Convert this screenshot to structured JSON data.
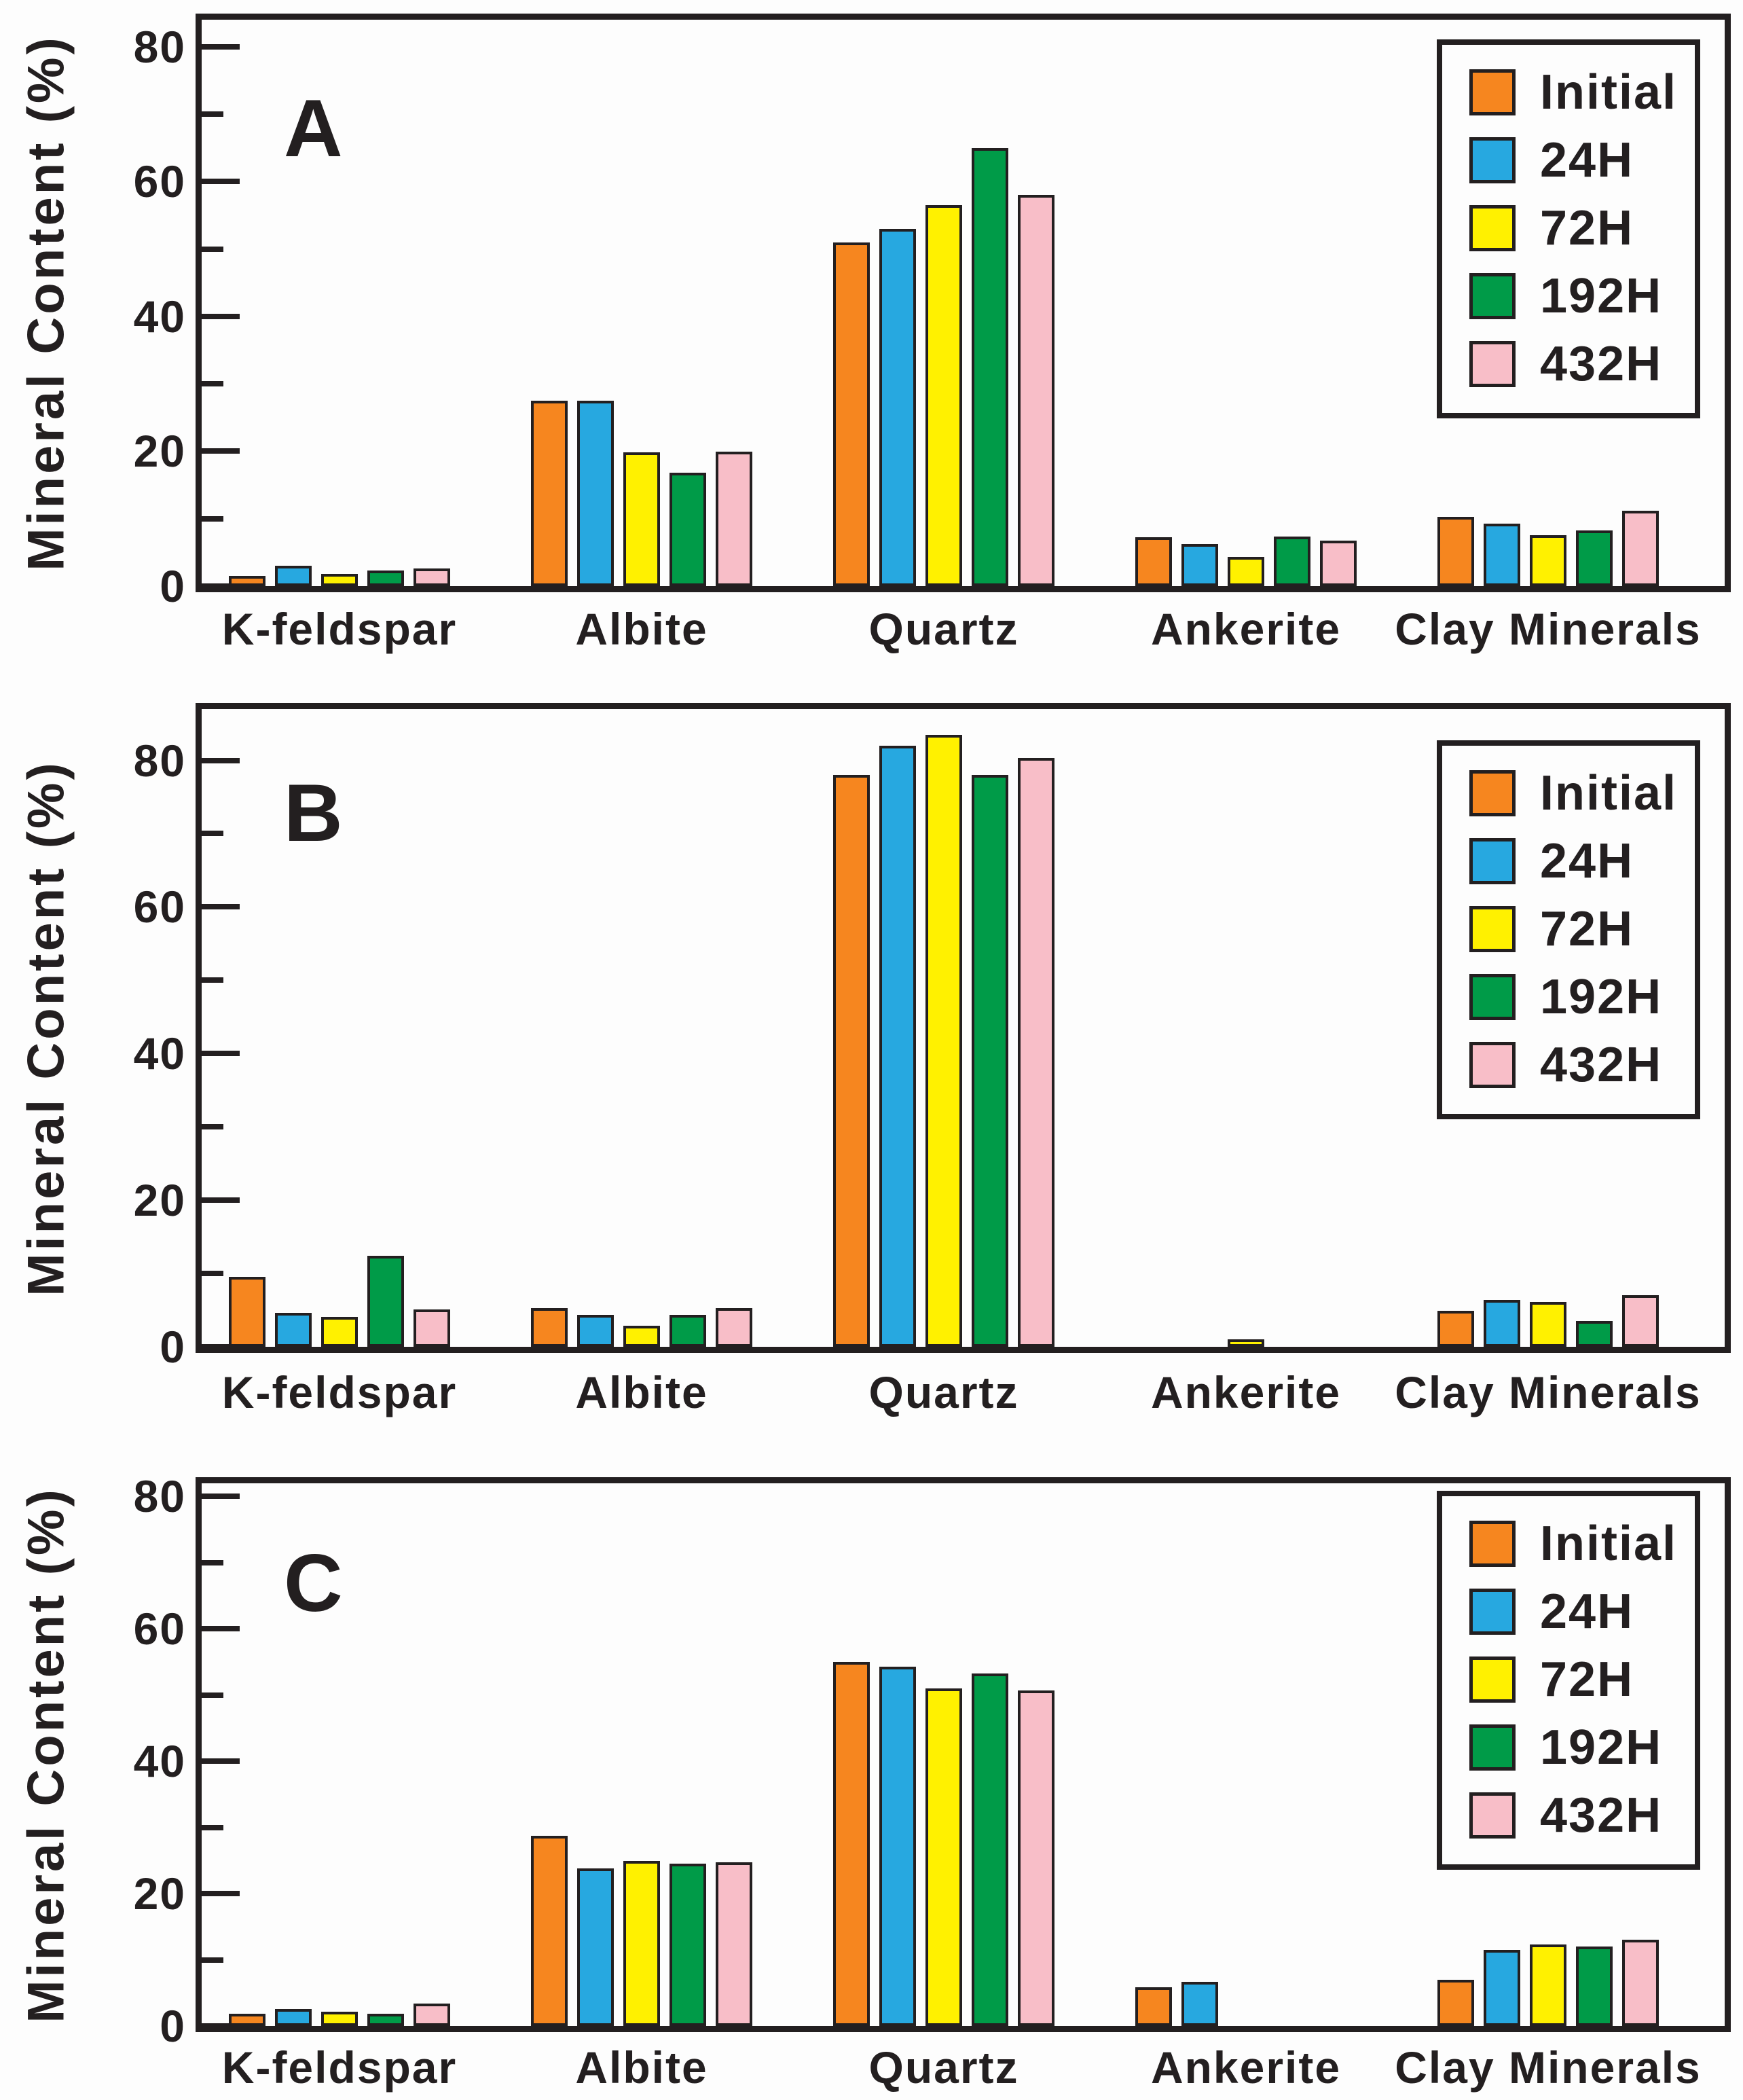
{
  "colors": {
    "initial": "#F6861F",
    "h24": "#27A8E0",
    "h72": "#FFF100",
    "h192": "#009B48",
    "h432": "#F8BEC8",
    "ink": "#231F20",
    "background": "#FDFDFD"
  },
  "legend": {
    "entries": [
      {
        "label": "Initial",
        "color": "#F6861F"
      },
      {
        "label": "24H",
        "color": "#27A8E0"
      },
      {
        "label": "72H",
        "color": "#FFF100"
      },
      {
        "label": "192H",
        "color": "#009B48"
      },
      {
        "label": "432H",
        "color": "#F8BEC8"
      }
    ],
    "position": "top-right"
  },
  "chart_data": [
    {
      "type": "bar",
      "panel_label": "A",
      "title": "",
      "xlabel": "",
      "ylabel": "Mineral Content (%)",
      "ylim": [
        0,
        84
      ],
      "y_ticks": [
        0,
        20,
        40,
        60,
        80
      ],
      "y_minor_ticks": [
        10,
        30,
        50,
        70
      ],
      "grid": false,
      "legend_position": "top-right",
      "categories": [
        "K-feldspar",
        "Albite",
        "Quartz",
        "Ankerite",
        "Clay Minerals"
      ],
      "series": [
        {
          "name": "Initial",
          "color": "#F6861F",
          "values": [
            1.5,
            27.5,
            51.0,
            7.3,
            10.3
          ]
        },
        {
          "name": "24H",
          "color": "#27A8E0",
          "values": [
            3.0,
            27.5,
            53.0,
            6.2,
            9.3
          ]
        },
        {
          "name": "72H",
          "color": "#FFF100",
          "values": [
            1.8,
            19.8,
            56.5,
            4.3,
            7.6
          ]
        },
        {
          "name": "192H",
          "color": "#009B48",
          "values": [
            2.3,
            16.8,
            65.0,
            7.4,
            8.3
          ]
        },
        {
          "name": "432H",
          "color": "#F8BEC8",
          "values": [
            2.6,
            19.9,
            58.0,
            6.7,
            11.2
          ]
        }
      ]
    },
    {
      "type": "bar",
      "panel_label": "B",
      "title": "",
      "xlabel": "",
      "ylabel": "Mineral Content (%)",
      "ylim": [
        0,
        87
      ],
      "y_ticks": [
        0,
        20,
        40,
        60,
        80
      ],
      "y_minor_ticks": [
        10,
        30,
        50,
        70
      ],
      "grid": false,
      "legend_position": "top-right",
      "categories": [
        "K-feldspar",
        "Albite",
        "Quartz",
        "Ankerite",
        "Clay Minerals"
      ],
      "series": [
        {
          "name": "Initial",
          "color": "#F6861F",
          "values": [
            9.5,
            5.3,
            78.0,
            0,
            4.9
          ]
        },
        {
          "name": "24H",
          "color": "#27A8E0",
          "values": [
            4.6,
            4.4,
            82.0,
            0,
            6.4
          ]
        },
        {
          "name": "72H",
          "color": "#FFF100",
          "values": [
            4.1,
            2.9,
            83.5,
            1.0,
            6.1
          ]
        },
        {
          "name": "192H",
          "color": "#009B48",
          "values": [
            12.4,
            4.4,
            78.0,
            0,
            3.5
          ]
        },
        {
          "name": "432H",
          "color": "#F8BEC8",
          "values": [
            5.1,
            5.3,
            80.3,
            0,
            7.0
          ]
        }
      ]
    },
    {
      "type": "bar",
      "panel_label": "C",
      "title": "",
      "xlabel": "",
      "ylabel": "Mineral Content (%)",
      "ylim": [
        0,
        82
      ],
      "y_ticks": [
        0,
        20,
        40,
        60,
        80
      ],
      "y_minor_ticks": [
        10,
        30,
        50,
        70
      ],
      "grid": false,
      "legend_position": "top-right",
      "categories": [
        "K-feldspar",
        "Albite",
        "Quartz",
        "Ankerite",
        "Clay Minerals"
      ],
      "series": [
        {
          "name": "Initial",
          "color": "#F6861F",
          "values": [
            1.8,
            28.7,
            55.0,
            5.9,
            7.0
          ]
        },
        {
          "name": "24H",
          "color": "#27A8E0",
          "values": [
            2.6,
            23.8,
            54.3,
            6.7,
            11.5
          ]
        },
        {
          "name": "72H",
          "color": "#FFF100",
          "values": [
            2.2,
            24.9,
            51.0,
            0,
            12.3
          ]
        },
        {
          "name": "192H",
          "color": "#009B48",
          "values": [
            1.8,
            24.5,
            53.3,
            0,
            12.0
          ]
        },
        {
          "name": "432H",
          "color": "#F8BEC8",
          "values": [
            3.4,
            24.7,
            50.7,
            0,
            13.0
          ]
        }
      ]
    }
  ]
}
